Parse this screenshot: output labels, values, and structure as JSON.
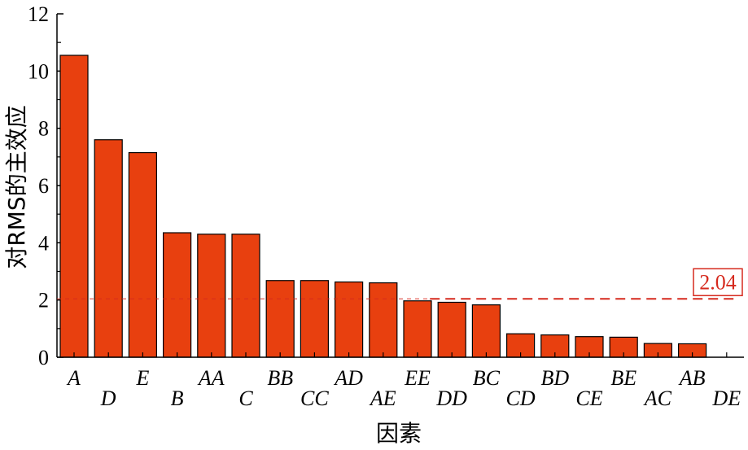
{
  "chart_data": {
    "type": "bar",
    "categories": [
      "A",
      "D",
      "E",
      "B",
      "AA",
      "C",
      "BB",
      "CC",
      "AD",
      "AE",
      "EE",
      "DD",
      "BC",
      "CD",
      "BD",
      "CE",
      "BE",
      "AC",
      "AB",
      "DE"
    ],
    "values": [
      10.55,
      7.6,
      7.15,
      4.35,
      4.3,
      4.3,
      2.68,
      2.68,
      2.63,
      2.6,
      1.97,
      1.92,
      1.83,
      0.82,
      0.78,
      0.72,
      0.7,
      0.48,
      0.47,
      0.0
    ],
    "xlabel": "因素",
    "ylabel": "对RMS的主效应",
    "ylim": [
      0,
      12
    ],
    "yticks": [
      0,
      2,
      4,
      6,
      8,
      10,
      12
    ],
    "reference_line": {
      "value": 2.04,
      "label": "2.04",
      "color": "#d62a1e"
    },
    "bar_color": "#e8400f",
    "grid": false
  }
}
